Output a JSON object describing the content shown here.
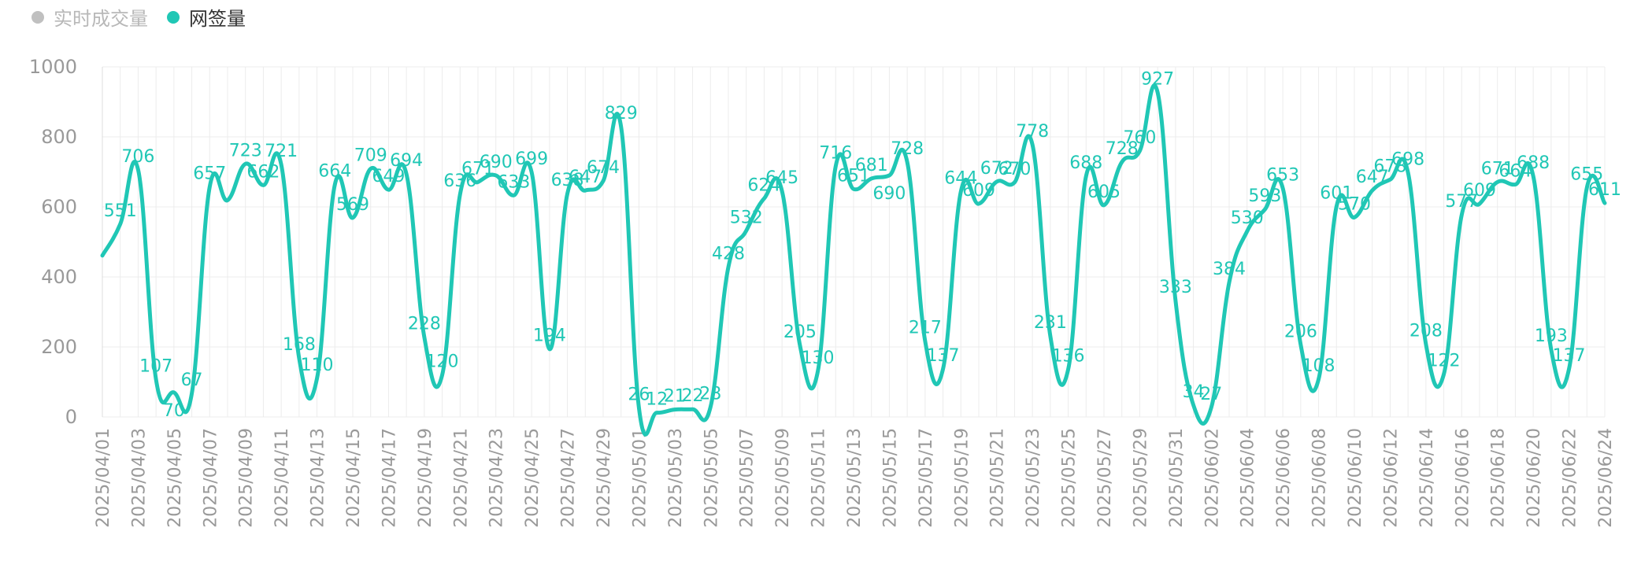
{
  "colors": {
    "accent": "#20c7b5",
    "inactive": "#c0c0c0",
    "grid": "#ececec",
    "axis_text": "#999999"
  },
  "legend": {
    "items": [
      {
        "label": "实时成交量",
        "active": false
      },
      {
        "label": "网签量",
        "active": true
      }
    ]
  },
  "chart_data": {
    "type": "line",
    "title": "",
    "xlabel": "",
    "ylabel": "",
    "ylim": [
      0,
      1000
    ],
    "yticks": [
      0,
      200,
      400,
      600,
      800,
      1000
    ],
    "grid": true,
    "legend_position": "top-left",
    "x_tick_labels": [
      "2025/04/01",
      "2025/04/03",
      "2025/04/05",
      "2025/04/07",
      "2025/04/09",
      "2025/04/11",
      "2025/04/13",
      "2025/04/15",
      "2025/04/17",
      "2025/04/19",
      "2025/04/21",
      "2025/04/23",
      "2025/04/25",
      "2025/04/27",
      "2025/04/29",
      "2025/05/01",
      "2025/05/03",
      "2025/05/05",
      "2025/05/07",
      "2025/05/09",
      "2025/05/11",
      "2025/05/13",
      "2025/05/15",
      "2025/05/17",
      "2025/05/19",
      "2025/05/21",
      "2025/05/23",
      "2025/05/25",
      "2025/05/27",
      "2025/05/29",
      "2025/05/31",
      "2025/06/02",
      "2025/06/04",
      "2025/06/06",
      "2025/06/08",
      "2025/06/10",
      "2025/06/12",
      "2025/06/14",
      "2025/06/16",
      "2025/06/18",
      "2025/06/20",
      "2025/06/22",
      "2025/06/24"
    ],
    "series": [
      {
        "name": "网签量",
        "points": [
          {
            "x": "2025/04/01",
            "y": 461,
            "label": "",
            "pos": "top"
          },
          {
            "x": "2025/04/02",
            "y": 551,
            "label": "551",
            "pos": "top"
          },
          {
            "x": "2025/04/03",
            "y": 706,
            "label": "706",
            "pos": "top"
          },
          {
            "x": "2025/04/04",
            "y": 107,
            "label": "107",
            "pos": "top"
          },
          {
            "x": "2025/04/05",
            "y": 70,
            "label": "70",
            "pos": "bottom"
          },
          {
            "x": "2025/04/06",
            "y": 67,
            "label": "67",
            "pos": "top"
          },
          {
            "x": "2025/04/07",
            "y": 657,
            "label": "657",
            "pos": "top"
          },
          {
            "x": "2025/04/08",
            "y": 619,
            "label": "",
            "pos": "top"
          },
          {
            "x": "2025/04/09",
            "y": 723,
            "label": "723",
            "pos": "top"
          },
          {
            "x": "2025/04/10",
            "y": 662,
            "label": "662",
            "pos": "top"
          },
          {
            "x": "2025/04/11",
            "y": 721,
            "label": "721",
            "pos": "top"
          },
          {
            "x": "2025/04/12",
            "y": 168,
            "label": "168",
            "pos": "top"
          },
          {
            "x": "2025/04/13",
            "y": 110,
            "label": "110",
            "pos": "top"
          },
          {
            "x": "2025/04/14",
            "y": 664,
            "label": "664",
            "pos": "top"
          },
          {
            "x": "2025/04/15",
            "y": 569,
            "label": "569",
            "pos": "top"
          },
          {
            "x": "2025/04/16",
            "y": 709,
            "label": "709",
            "pos": "top"
          },
          {
            "x": "2025/04/17",
            "y": 649,
            "label": "649",
            "pos": "top"
          },
          {
            "x": "2025/04/18",
            "y": 694,
            "label": "694",
            "pos": "top"
          },
          {
            "x": "2025/04/19",
            "y": 228,
            "label": "228",
            "pos": "top"
          },
          {
            "x": "2025/04/20",
            "y": 120,
            "label": "120",
            "pos": "top"
          },
          {
            "x": "2025/04/21",
            "y": 636,
            "label": "636",
            "pos": "top"
          },
          {
            "x": "2025/04/22",
            "y": 671,
            "label": "671",
            "pos": "top"
          },
          {
            "x": "2025/04/23",
            "y": 690,
            "label": "690",
            "pos": "top"
          },
          {
            "x": "2025/04/24",
            "y": 633,
            "label": "633",
            "pos": "top"
          },
          {
            "x": "2025/04/25",
            "y": 699,
            "label": "699",
            "pos": "top"
          },
          {
            "x": "2025/04/26",
            "y": 194,
            "label": "194",
            "pos": "top"
          },
          {
            "x": "2025/04/27",
            "y": 638,
            "label": "638",
            "pos": "top"
          },
          {
            "x": "2025/04/28",
            "y": 647,
            "label": "647",
            "pos": "top"
          },
          {
            "x": "2025/04/29",
            "y": 674,
            "label": "674",
            "pos": "top"
          },
          {
            "x": "2025/04/30",
            "y": 829,
            "label": "829",
            "pos": "top"
          },
          {
            "x": "2025/05/01",
            "y": 26,
            "label": "26",
            "pos": "top"
          },
          {
            "x": "2025/05/02",
            "y": 12,
            "label": "12",
            "pos": "top"
          },
          {
            "x": "2025/05/03",
            "y": 21,
            "label": "21",
            "pos": "top"
          },
          {
            "x": "2025/05/04",
            "y": 22,
            "label": "22",
            "pos": "top"
          },
          {
            "x": "2025/05/05",
            "y": 28,
            "label": "28",
            "pos": "top"
          },
          {
            "x": "2025/05/06",
            "y": 428,
            "label": "428",
            "pos": "top"
          },
          {
            "x": "2025/05/07",
            "y": 532,
            "label": "532",
            "pos": "top"
          },
          {
            "x": "2025/05/08",
            "y": 624,
            "label": "624",
            "pos": "top"
          },
          {
            "x": "2025/05/09",
            "y": 645,
            "label": "645",
            "pos": "top"
          },
          {
            "x": "2025/05/10",
            "y": 205,
            "label": "205",
            "pos": "top"
          },
          {
            "x": "2025/05/11",
            "y": 130,
            "label": "130",
            "pos": "top"
          },
          {
            "x": "2025/05/12",
            "y": 716,
            "label": "716",
            "pos": "top"
          },
          {
            "x": "2025/05/13",
            "y": 651,
            "label": "651",
            "pos": "top"
          },
          {
            "x": "2025/05/14",
            "y": 681,
            "label": "681",
            "pos": "top"
          },
          {
            "x": "2025/05/15",
            "y": 690,
            "label": "690",
            "pos": "bottom"
          },
          {
            "x": "2025/05/16",
            "y": 728,
            "label": "728",
            "pos": "top"
          },
          {
            "x": "2025/05/17",
            "y": 217,
            "label": "217",
            "pos": "top"
          },
          {
            "x": "2025/05/18",
            "y": 137,
            "label": "137",
            "pos": "top"
          },
          {
            "x": "2025/05/19",
            "y": 644,
            "label": "644",
            "pos": "top"
          },
          {
            "x": "2025/05/20",
            "y": 609,
            "label": "609",
            "pos": "top"
          },
          {
            "x": "2025/05/21",
            "y": 672,
            "label": "672",
            "pos": "top"
          },
          {
            "x": "2025/05/22",
            "y": 670,
            "label": "670",
            "pos": "top"
          },
          {
            "x": "2025/05/23",
            "y": 778,
            "label": "778",
            "pos": "top"
          },
          {
            "x": "2025/05/24",
            "y": 231,
            "label": "231",
            "pos": "top"
          },
          {
            "x": "2025/05/25",
            "y": 136,
            "label": "136",
            "pos": "top"
          },
          {
            "x": "2025/05/26",
            "y": 688,
            "label": "688",
            "pos": "top"
          },
          {
            "x": "2025/05/27",
            "y": 605,
            "label": "605",
            "pos": "top"
          },
          {
            "x": "2025/05/28",
            "y": 728,
            "label": "728",
            "pos": "top"
          },
          {
            "x": "2025/05/29",
            "y": 760,
            "label": "760",
            "pos": "top"
          },
          {
            "x": "2025/05/30",
            "y": 927,
            "label": "927",
            "pos": "top"
          },
          {
            "x": "2025/05/31",
            "y": 333,
            "label": "333",
            "pos": "top"
          },
          {
            "x": "2025/06/01",
            "y": 34,
            "label": "34",
            "pos": "top"
          },
          {
            "x": "2025/06/02",
            "y": 27,
            "label": "27",
            "pos": "top"
          },
          {
            "x": "2025/06/03",
            "y": 384,
            "label": "384",
            "pos": "top"
          },
          {
            "x": "2025/06/04",
            "y": 530,
            "label": "530",
            "pos": "top"
          },
          {
            "x": "2025/06/05",
            "y": 593,
            "label": "593",
            "pos": "top"
          },
          {
            "x": "2025/06/06",
            "y": 653,
            "label": "653",
            "pos": "top"
          },
          {
            "x": "2025/06/07",
            "y": 206,
            "label": "206",
            "pos": "top"
          },
          {
            "x": "2025/06/08",
            "y": 108,
            "label": "108",
            "pos": "top"
          },
          {
            "x": "2025/06/09",
            "y": 601,
            "label": "601",
            "pos": "top"
          },
          {
            "x": "2025/06/10",
            "y": 570,
            "label": "570",
            "pos": "top"
          },
          {
            "x": "2025/06/11",
            "y": 647,
            "label": "647",
            "pos": "top"
          },
          {
            "x": "2025/06/12",
            "y": 678,
            "label": "678",
            "pos": "top"
          },
          {
            "x": "2025/06/13",
            "y": 698,
            "label": "698",
            "pos": "top"
          },
          {
            "x": "2025/06/14",
            "y": 208,
            "label": "208",
            "pos": "top"
          },
          {
            "x": "2025/06/15",
            "y": 122,
            "label": "122",
            "pos": "top"
          },
          {
            "x": "2025/06/16",
            "y": 577,
            "label": "577",
            "pos": "top"
          },
          {
            "x": "2025/06/17",
            "y": 609,
            "label": "609",
            "pos": "top"
          },
          {
            "x": "2025/06/18",
            "y": 671,
            "label": "671",
            "pos": "top"
          },
          {
            "x": "2025/06/19",
            "y": 664,
            "label": "664",
            "pos": "top"
          },
          {
            "x": "2025/06/20",
            "y": 688,
            "label": "688",
            "pos": "top"
          },
          {
            "x": "2025/06/21",
            "y": 193,
            "label": "193",
            "pos": "top"
          },
          {
            "x": "2025/06/22",
            "y": 137,
            "label": "137",
            "pos": "top"
          },
          {
            "x": "2025/06/23",
            "y": 655,
            "label": "655",
            "pos": "top"
          },
          {
            "x": "2025/06/24",
            "y": 611,
            "label": "611",
            "pos": "top"
          }
        ]
      }
    ]
  }
}
